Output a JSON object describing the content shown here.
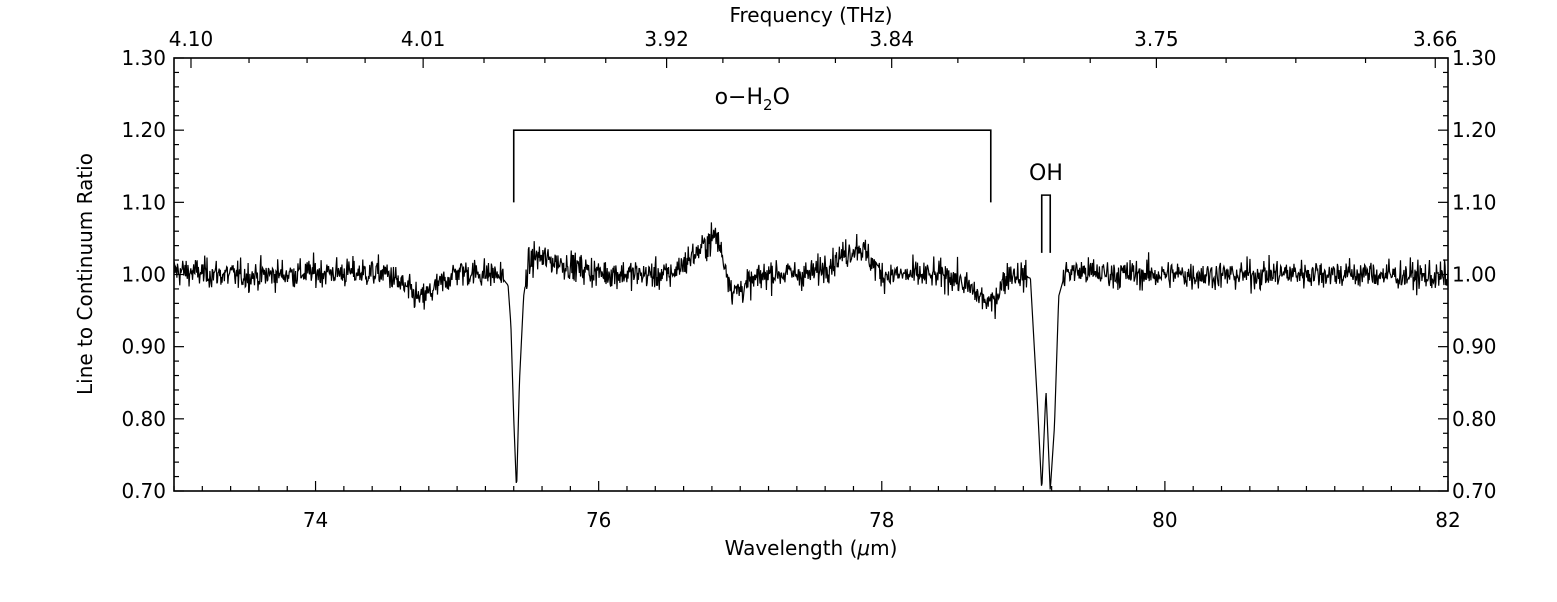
{
  "chart_data": {
    "type": "line",
    "title": "",
    "xlabel": "Wavelength (μm)",
    "xlabel_text": "Wavelength (",
    "xlabel_mu": "μ",
    "xlabel_unit": "m)",
    "ylabel": "Line to Continuum Ratio",
    "top_xlabel": "Frequency (THz)",
    "xlim": [
      73.0,
      82.0
    ],
    "ylim": [
      0.7,
      1.3
    ],
    "x_ticks": [
      {
        "value": 74,
        "label": "74"
      },
      {
        "value": 76,
        "label": "76"
      },
      {
        "value": 78,
        "label": "78"
      },
      {
        "value": 80,
        "label": "80"
      },
      {
        "value": 82,
        "label": "82"
      }
    ],
    "y_ticks": [
      {
        "value": 0.7,
        "label": "0.70"
      },
      {
        "value": 0.8,
        "label": "0.80"
      },
      {
        "value": 0.9,
        "label": "0.90"
      },
      {
        "value": 1.0,
        "label": "1.00"
      },
      {
        "value": 1.1,
        "label": "1.10"
      },
      {
        "value": 1.2,
        "label": "1.20"
      },
      {
        "value": 1.3,
        "label": "1.30"
      }
    ],
    "top_ticks": [
      {
        "wavelength": 73.12,
        "label": "4.10"
      },
      {
        "wavelength": 74.76,
        "label": "4.01"
      },
      {
        "wavelength": 76.48,
        "label": "3.92"
      },
      {
        "wavelength": 78.07,
        "label": "3.84"
      },
      {
        "wavelength": 79.94,
        "label": "3.75"
      },
      {
        "wavelength": 81.91,
        "label": "3.66"
      }
    ],
    "continuum_level": 1.0,
    "noise_rms": 0.01,
    "series": [
      {
        "points": [
          [
            73.0,
            1.005
          ],
          [
            73.5,
            0.998
          ],
          [
            74.0,
            1.003
          ],
          [
            74.5,
            1.002
          ],
          [
            74.74,
            0.965
          ],
          [
            75.0,
            1.004
          ],
          [
            75.3,
            1.0
          ],
          [
            75.36,
            0.985
          ],
          [
            75.38,
            0.93
          ],
          [
            75.4,
            0.8
          ],
          [
            75.42,
            0.7
          ],
          [
            75.44,
            0.85
          ],
          [
            75.47,
            0.97
          ],
          [
            75.5,
            1.01
          ],
          [
            75.55,
            1.025
          ],
          [
            76.0,
            1.002
          ],
          [
            76.5,
            0.999
          ],
          [
            76.72,
            1.035
          ],
          [
            76.83,
            1.055
          ],
          [
            76.95,
            0.975
          ],
          [
            77.2,
            1.002
          ],
          [
            77.5,
            1.0
          ],
          [
            77.84,
            1.04
          ],
          [
            78.0,
            1.0
          ],
          [
            78.5,
            0.998
          ],
          [
            78.77,
            0.958
          ],
          [
            78.9,
            1.003
          ],
          [
            79.05,
            0.995
          ],
          [
            79.1,
            0.82
          ],
          [
            79.13,
            0.7
          ],
          [
            79.16,
            0.84
          ],
          [
            79.19,
            0.7
          ],
          [
            79.22,
            0.79
          ],
          [
            79.25,
            0.97
          ],
          [
            79.3,
            1.005
          ],
          [
            79.6,
            1.001
          ],
          [
            80.0,
            1.0
          ],
          [
            80.5,
            0.999
          ],
          [
            81.0,
            1.002
          ],
          [
            81.5,
            1.0
          ],
          [
            82.0,
            0.996
          ]
        ]
      }
    ],
    "annotations": [
      {
        "text": "o−H₂O",
        "text_main": "o−H",
        "text_sub": "2",
        "text_end": "O",
        "kind": "bracket",
        "x_start": 75.4,
        "x_end": 78.77,
        "y_top": 1.2,
        "y_bottom": 1.1
      },
      {
        "text": "OH",
        "kind": "doublet",
        "x_start": 79.13,
        "x_end": 79.19,
        "y_top": 1.11,
        "y_bottom": 1.03
      }
    ]
  }
}
